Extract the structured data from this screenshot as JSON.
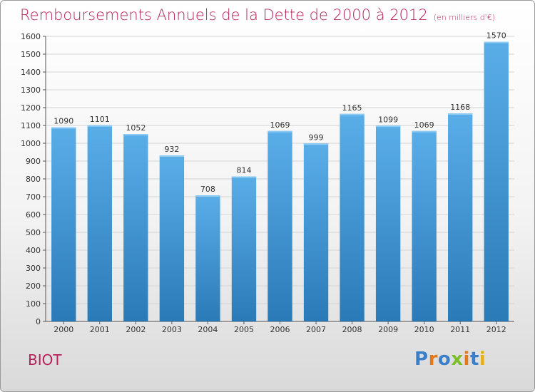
{
  "header": {
    "title": "Remboursements Annuels de la Dette de 2000 à 2012",
    "subtitle": "(en milliers d'€)"
  },
  "footer": {
    "city": "BIOT",
    "logo_text": "Proxiti"
  },
  "colors": {
    "title": "#b5225a",
    "bar_top": "#5aaee8",
    "bar_bottom": "#2a7ab8",
    "grid": "#d4d4d4",
    "logo_letters": [
      "#3a7fc8",
      "#e4781a",
      "#3a7fc8",
      "#7bbf2a",
      "#e4781a",
      "#3a7fc8",
      "#e2b21a"
    ]
  },
  "chart_data": {
    "type": "bar",
    "title": "Remboursements Annuels de la Dette de 2000 à 2012",
    "xlabel": "",
    "ylabel": "",
    "categories": [
      "2000",
      "2001",
      "2002",
      "2003",
      "2004",
      "2005",
      "2006",
      "2007",
      "2008",
      "2009",
      "2010",
      "2011",
      "2012"
    ],
    "values": [
      1090,
      1101,
      1052,
      932,
      708,
      814,
      1069,
      999,
      1165,
      1099,
      1069,
      1168,
      1570
    ],
    "ylim": [
      0,
      1600
    ],
    "yticks": [
      0,
      100,
      200,
      300,
      400,
      500,
      600,
      700,
      800,
      900,
      1000,
      1100,
      1200,
      1300,
      1400,
      1500,
      1600
    ],
    "grid": true,
    "data_labels": true
  }
}
